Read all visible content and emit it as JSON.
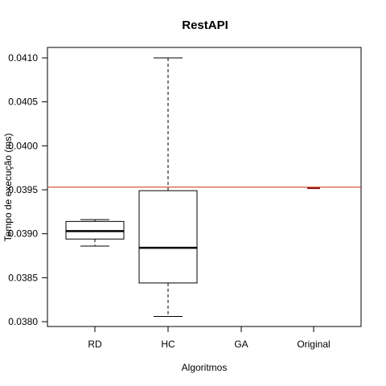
{
  "chart_data": {
    "type": "boxplot",
    "title": "RestAPI",
    "xlabel": "Algoritmos",
    "ylabel": "Tempo de execução (ms)",
    "categories": [
      "RD",
      "HC",
      "GA",
      "Original"
    ],
    "ylim": [
      0.03795,
      0.04115
    ],
    "yticks": [
      0.038,
      0.0385,
      0.039,
      0.0395,
      0.04,
      0.0405,
      0.041
    ],
    "ytick_labels": [
      "0.0380",
      "0.0385",
      "0.0390",
      "0.0395",
      "0.0400",
      "0.0405",
      "0.0410"
    ],
    "boxes": [
      {
        "category": "RD",
        "min": 0.03886,
        "q1": 0.03894,
        "median": 0.03903,
        "q3": 0.03914,
        "max": 0.03916
      },
      {
        "category": "HC",
        "min": 0.03806,
        "q1": 0.03844,
        "median": 0.03884,
        "q3": 0.03949,
        "max": 0.041
      },
      {
        "category": "GA"
      },
      {
        "category": "Original",
        "min": 0.03952,
        "q1": 0.03952,
        "median": 0.03952,
        "q3": 0.03952,
        "max": 0.03952
      }
    ],
    "reference_line": {
      "value": 0.03953,
      "color": "#cc3311"
    },
    "median_color_original": "#8b1a1a",
    "grid": false,
    "legend": "none"
  }
}
